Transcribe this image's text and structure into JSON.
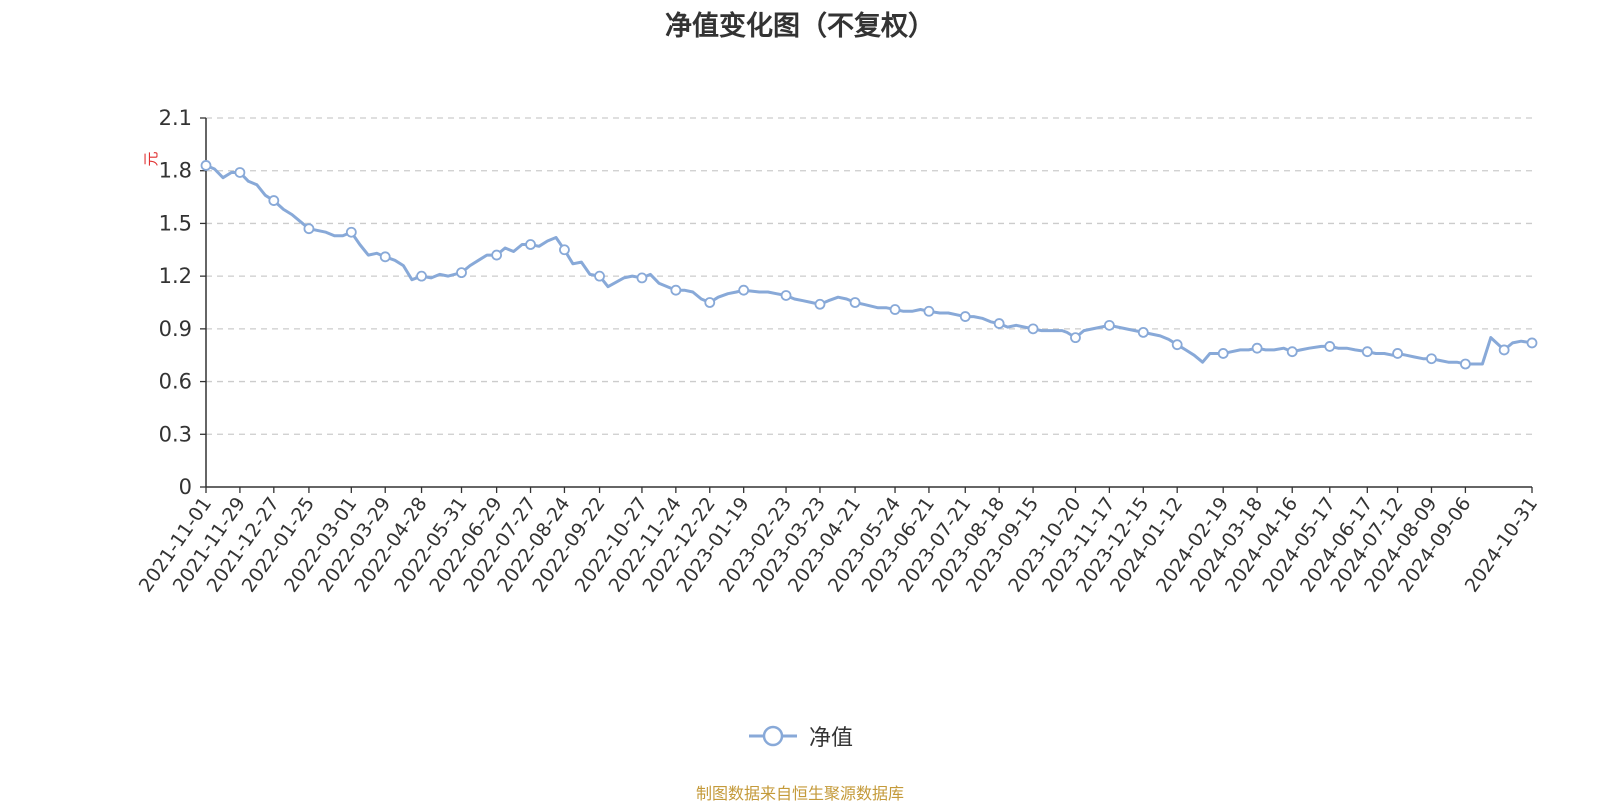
{
  "colors": {
    "line": "#88a9d8",
    "grid": "#cccccc",
    "axis": "#333333",
    "unit": "#e03030",
    "source": "#c49a3a"
  },
  "chart_data": {
    "type": "line",
    "title": "净值变化图（不复权）",
    "ylabel": "元",
    "ylim": [
      0,
      2.1
    ],
    "yticks": [
      "0",
      "0.3",
      "0.6",
      "0.9",
      "1.2",
      "1.5",
      "1.8",
      "2.1"
    ],
    "grid": true,
    "legend_position": "bottom-center",
    "x_tick_labels": [
      "2021-11-01",
      "2021-11-29",
      "2021-12-27",
      "2022-01-25",
      "2022-03-01",
      "2022-03-29",
      "2022-04-28",
      "2022-05-31",
      "2022-06-29",
      "2022-07-27",
      "2022-08-24",
      "2022-09-22",
      "2022-10-27",
      "2022-11-24",
      "2022-12-22",
      "2023-01-19",
      "2023-02-23",
      "2023-03-23",
      "2023-04-21",
      "2023-05-24",
      "2023-06-21",
      "2023-07-21",
      "2023-08-18",
      "2023-09-15",
      "2023-10-20",
      "2023-11-17",
      "2023-12-15",
      "2024-01-12",
      "2024-02-19",
      "2024-03-18",
      "2024-04-16",
      "2024-05-17",
      "2024-06-17",
      "2024-07-12",
      "2024-08-09",
      "2024-09-06",
      "2024-10-31"
    ],
    "series": [
      {
        "name": "净值",
        "x": [
          "2021-11-01",
          "2021-11-08",
          "2021-11-15",
          "2021-11-22",
          "2021-11-29",
          "2021-12-06",
          "2021-12-13",
          "2021-12-20",
          "2021-12-27",
          "2022-01-04",
          "2022-01-11",
          "2022-01-18",
          "2022-01-25",
          "2022-02-08",
          "2022-02-15",
          "2022-02-22",
          "2022-03-01",
          "2022-03-08",
          "2022-03-15",
          "2022-03-22",
          "2022-03-29",
          "2022-04-06",
          "2022-04-13",
          "2022-04-20",
          "2022-04-28",
          "2022-05-06",
          "2022-05-13",
          "2022-05-20",
          "2022-05-31",
          "2022-06-07",
          "2022-06-14",
          "2022-06-21",
          "2022-06-29",
          "2022-07-06",
          "2022-07-13",
          "2022-07-20",
          "2022-07-27",
          "2022-08-03",
          "2022-08-10",
          "2022-08-17",
          "2022-08-24",
          "2022-08-31",
          "2022-09-07",
          "2022-09-14",
          "2022-09-22",
          "2022-09-29",
          "2022-10-12",
          "2022-10-19",
          "2022-10-27",
          "2022-11-03",
          "2022-11-10",
          "2022-11-17",
          "2022-11-24",
          "2022-12-01",
          "2022-12-08",
          "2022-12-15",
          "2022-12-22",
          "2022-12-29",
          "2023-01-06",
          "2023-01-13",
          "2023-01-19",
          "2023-02-01",
          "2023-02-08",
          "2023-02-15",
          "2023-02-23",
          "2023-03-02",
          "2023-03-09",
          "2023-03-16",
          "2023-03-23",
          "2023-03-30",
          "2023-04-07",
          "2023-04-14",
          "2023-04-21",
          "2023-04-28",
          "2023-05-10",
          "2023-05-17",
          "2023-05-24",
          "2023-05-31",
          "2023-06-07",
          "2023-06-14",
          "2023-06-21",
          "2023-06-30",
          "2023-07-07",
          "2023-07-14",
          "2023-07-21",
          "2023-07-28",
          "2023-08-04",
          "2023-08-11",
          "2023-08-18",
          "2023-08-25",
          "2023-09-01",
          "2023-09-08",
          "2023-09-15",
          "2023-09-22",
          "2023-10-09",
          "2023-10-13",
          "2023-10-20",
          "2023-10-27",
          "2023-11-03",
          "2023-11-10",
          "2023-11-17",
          "2023-11-24",
          "2023-12-01",
          "2023-12-08",
          "2023-12-15",
          "2023-12-22",
          "2023-12-29",
          "2024-01-05",
          "2024-01-12",
          "2024-01-19",
          "2024-01-26",
          "2024-02-02",
          "2024-02-08",
          "2024-02-19",
          "2024-02-26",
          "2024-03-04",
          "2024-03-11",
          "2024-03-18",
          "2024-03-25",
          "2024-04-01",
          "2024-04-09",
          "2024-04-16",
          "2024-04-23",
          "2024-04-30",
          "2024-05-10",
          "2024-05-17",
          "2024-05-24",
          "2024-05-31",
          "2024-06-07",
          "2024-06-17",
          "2024-06-24",
          "2024-07-01",
          "2024-07-08",
          "2024-07-12",
          "2024-07-19",
          "2024-07-26",
          "2024-08-02",
          "2024-08-09",
          "2024-08-16",
          "2024-08-23",
          "2024-08-30",
          "2024-09-06",
          "2024-09-13",
          "2024-09-20",
          "2024-09-27",
          "2024-10-08",
          "2024-10-15",
          "2024-10-22",
          "2024-10-31"
        ],
        "values": [
          1.83,
          1.81,
          1.76,
          1.79,
          1.79,
          1.74,
          1.72,
          1.66,
          1.63,
          1.58,
          1.55,
          1.51,
          1.47,
          1.45,
          1.43,
          1.43,
          1.45,
          1.38,
          1.32,
          1.33,
          1.31,
          1.29,
          1.26,
          1.18,
          1.2,
          1.19,
          1.21,
          1.2,
          1.22,
          1.26,
          1.29,
          1.32,
          1.32,
          1.36,
          1.34,
          1.38,
          1.38,
          1.37,
          1.4,
          1.42,
          1.35,
          1.27,
          1.28,
          1.21,
          1.2,
          1.14,
          1.19,
          1.2,
          1.19,
          1.21,
          1.16,
          1.14,
          1.12,
          1.12,
          1.11,
          1.07,
          1.05,
          1.08,
          1.1,
          1.11,
          1.12,
          1.11,
          1.11,
          1.1,
          1.09,
          1.07,
          1.06,
          1.05,
          1.04,
          1.06,
          1.08,
          1.07,
          1.05,
          1.04,
          1.02,
          1.02,
          1.01,
          1.0,
          1.0,
          1.01,
          1.0,
          0.99,
          0.99,
          0.98,
          0.97,
          0.97,
          0.96,
          0.94,
          0.93,
          0.91,
          0.92,
          0.91,
          0.9,
          0.89,
          0.89,
          0.88,
          0.85,
          0.89,
          0.9,
          0.91,
          0.92,
          0.91,
          0.9,
          0.89,
          0.88,
          0.87,
          0.86,
          0.84,
          0.81,
          0.78,
          0.75,
          0.71,
          0.76,
          0.76,
          0.77,
          0.78,
          0.78,
          0.79,
          0.78,
          0.78,
          0.79,
          0.77,
          0.78,
          0.79,
          0.8,
          0.8,
          0.79,
          0.79,
          0.78,
          0.77,
          0.76,
          0.76,
          0.75,
          0.76,
          0.75,
          0.74,
          0.73,
          0.73,
          0.72,
          0.71,
          0.71,
          0.7,
          0.7,
          0.7,
          0.85,
          0.78,
          0.82,
          0.83,
          0.82
        ]
      }
    ],
    "marker_dates": [
      "2021-11-01",
      "2021-11-29",
      "2021-12-27",
      "2022-01-25",
      "2022-03-01",
      "2022-03-29",
      "2022-04-28",
      "2022-05-31",
      "2022-06-29",
      "2022-07-27",
      "2022-08-24",
      "2022-09-22",
      "2022-10-27",
      "2022-11-24",
      "2022-12-22",
      "2023-01-19",
      "2023-02-23",
      "2023-03-23",
      "2023-04-21",
      "2023-05-24",
      "2023-06-21",
      "2023-07-21",
      "2023-08-18",
      "2023-09-15",
      "2023-10-20",
      "2023-11-17",
      "2023-12-15",
      "2024-01-12",
      "2024-02-19",
      "2024-03-18",
      "2024-04-16",
      "2024-05-17",
      "2024-06-17",
      "2024-07-12",
      "2024-08-09",
      "2024-09-06",
      "2024-10-08",
      "2024-10-31"
    ]
  },
  "legend": {
    "label": "净值"
  },
  "source_note": "制图数据来自恒生聚源数据库"
}
